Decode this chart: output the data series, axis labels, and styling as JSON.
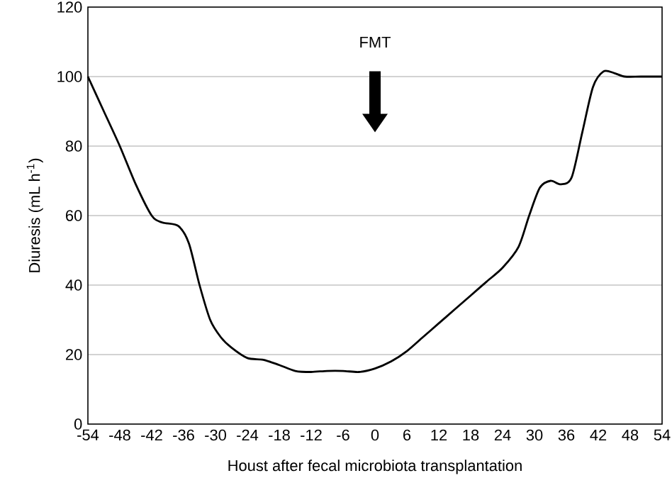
{
  "chart_data": {
    "type": "line",
    "xlabel": "Houst after fecal microbiota transplantation",
    "ylabel": "Diuresis (mL h$^{-1}$)",
    "annotations": [
      "FMT"
    ],
    "x": [
      -54,
      -51,
      -48,
      -45,
      -42,
      -40,
      -37,
      -35,
      -33,
      -31,
      -29,
      -27,
      -24,
      -21,
      -18,
      -15,
      -12,
      -9,
      -6,
      -3,
      0,
      3,
      6,
      9,
      12,
      15,
      18,
      21,
      24,
      27,
      29,
      31,
      33,
      35,
      37,
      39,
      41,
      43,
      45,
      47,
      50,
      54
    ],
    "series": [
      {
        "color": "#000000",
        "values": [
          100,
          90,
          80,
          69,
          60,
          58,
          57,
          52,
          40,
          30,
          25,
          22,
          19,
          18.5,
          17,
          15.3,
          15,
          15.3,
          15.3,
          15,
          16,
          18,
          21,
          25,
          29,
          33,
          37,
          41,
          45,
          51,
          60,
          68,
          70,
          69,
          71,
          84,
          97,
          101.5,
          101,
          100,
          100,
          100
        ]
      }
    ],
    "xlim": [
      -54,
      54
    ],
    "ylim": [
      0,
      120
    ],
    "xticks": [
      -54,
      -48,
      -42,
      -36,
      -30,
      -24,
      -18,
      -12,
      -6,
      0,
      6,
      12,
      18,
      24,
      30,
      36,
      42,
      48,
      54
    ],
    "yticks": [
      0,
      20,
      40,
      60,
      80,
      100,
      120
    ],
    "grid": "y",
    "line_style": "solid",
    "marker": "none"
  }
}
